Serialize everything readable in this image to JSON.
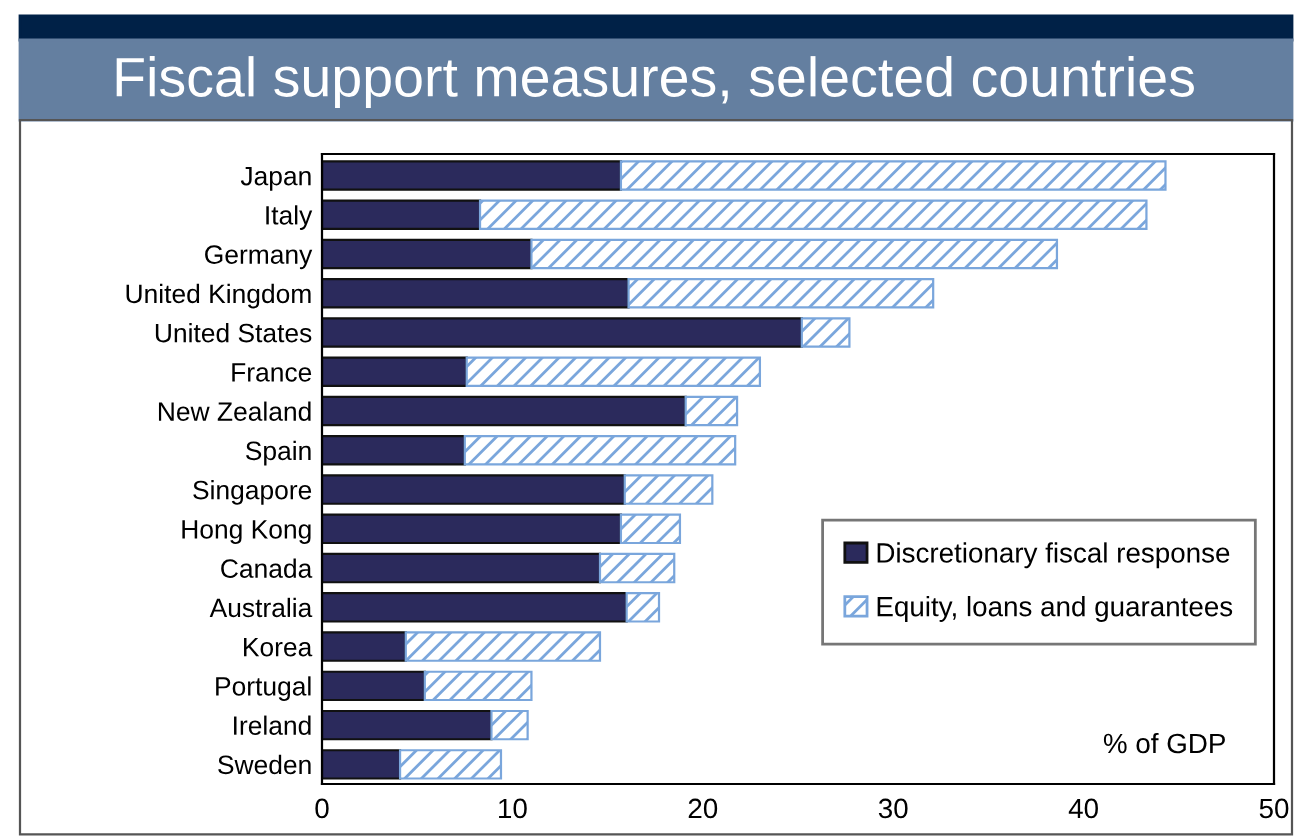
{
  "chart_data": {
    "type": "bar",
    "orientation": "horizontal",
    "stacked": true,
    "title": "Fiscal support measures, selected countries",
    "categories": [
      "Japan",
      "Italy",
      "Germany",
      "United Kingdom",
      "United States",
      "France",
      "New Zealand",
      "Spain",
      "Singapore",
      "Hong Kong",
      "Canada",
      "Australia",
      "Korea",
      "Portugal",
      "Ireland",
      "Sweden"
    ],
    "series": [
      {
        "name": "Discretionary fiscal response",
        "color": "#2b2a5c",
        "values": [
          15.7,
          8.3,
          11.0,
          16.1,
          25.2,
          7.6,
          19.1,
          7.5,
          15.9,
          15.7,
          14.6,
          16.0,
          4.4,
          5.4,
          8.9,
          4.1
        ]
      },
      {
        "name": "Equity, loans and guarantees",
        "color": "#7aa6dc",
        "values": [
          28.6,
          35.0,
          27.6,
          16.0,
          2.5,
          15.4,
          2.7,
          14.2,
          4.6,
          3.1,
          3.9,
          1.7,
          10.2,
          5.6,
          1.9,
          5.3
        ]
      }
    ],
    "xlim": [
      0,
      50
    ],
    "xticks": [
      0,
      10,
      20,
      30,
      40,
      50
    ],
    "grid": false,
    "legend": "bottom right",
    "annotations": [
      "% of GDP"
    ]
  }
}
